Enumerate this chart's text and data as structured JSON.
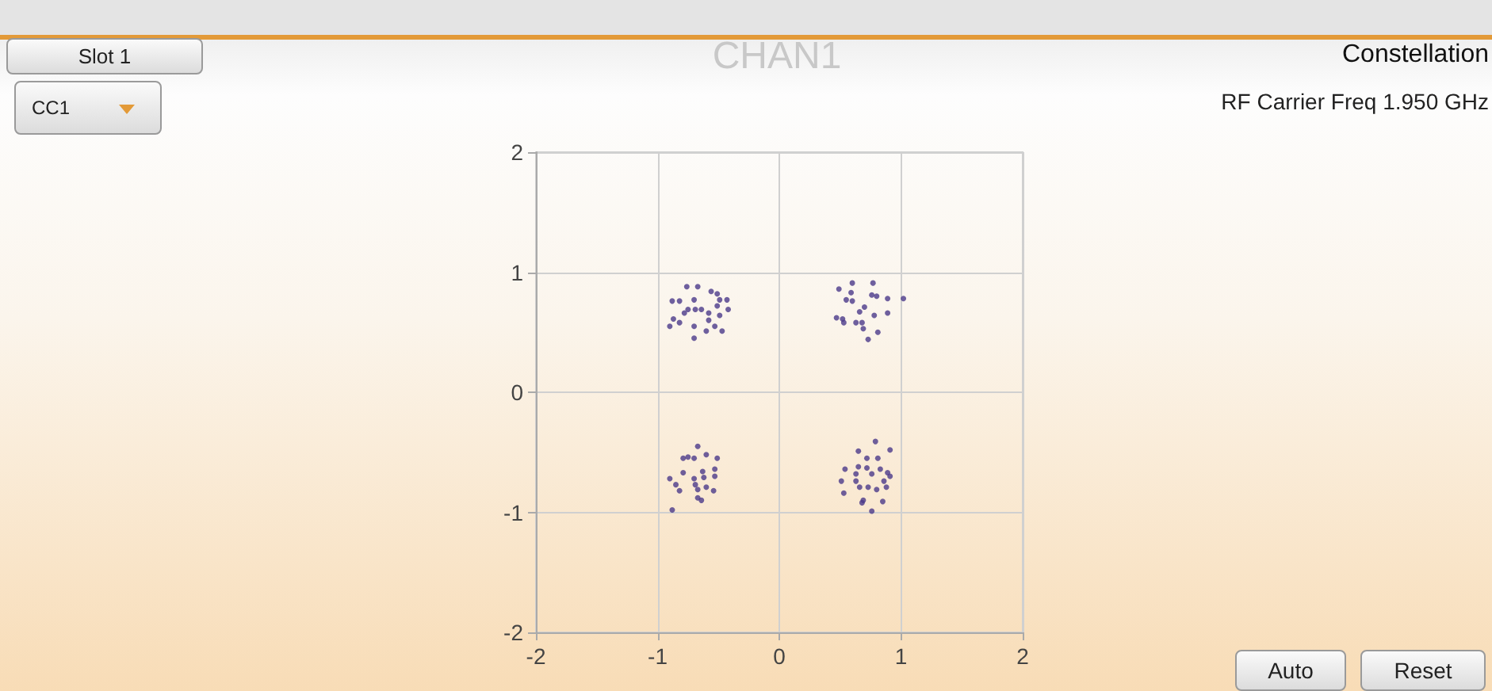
{
  "chart_data": {
    "type": "scatter",
    "title": "Constellation",
    "subtitle": "RF Carrier Freq 1.950 GHz",
    "annotations": [
      "CHAN1",
      "Slot 1",
      "CC1",
      "Auto",
      "Reset"
    ],
    "xlim": [
      -2,
      2
    ],
    "xticks": [
      -2,
      -1,
      0,
      1,
      2
    ],
    "ylim": [
      -2,
      2
    ],
    "yticks": [
      -2,
      -1,
      0,
      1,
      2
    ],
    "grid": true,
    "marker": "circle",
    "series": [
      {
        "color": "#4b3a8a",
        "x": [
          -0.76,
          -0.67,
          -0.56,
          -0.51,
          -0.88,
          -0.82,
          -0.7,
          -0.49,
          -0.43,
          -0.75,
          -0.69,
          -0.64,
          -0.51,
          -0.42,
          -0.78,
          -0.58,
          -0.49,
          -0.87,
          -0.82,
          -0.9,
          -0.7,
          -0.58,
          -0.53,
          -0.6,
          -0.47,
          -0.7,
          0.49,
          0.6,
          0.77,
          0.59,
          0.55,
          0.6,
          0.76,
          0.8,
          0.89,
          1.02,
          0.7,
          0.66,
          0.78,
          0.89,
          0.47,
          0.52,
          0.53,
          0.63,
          0.68,
          0.69,
          0.81,
          0.73,
          -0.67,
          -0.75,
          -0.79,
          -0.7,
          -0.6,
          -0.51,
          -0.79,
          -0.63,
          -0.53,
          -0.9,
          -0.7,
          -0.62,
          -0.53,
          -0.85,
          -0.69,
          -0.6,
          -0.82,
          -0.67,
          -0.54,
          -0.67,
          -0.64,
          -0.88,
          0.79,
          0.91,
          0.65,
          0.72,
          0.81,
          0.54,
          0.65,
          0.72,
          0.83,
          0.89,
          0.91,
          0.63,
          0.76,
          0.51,
          0.63,
          0.86,
          0.66,
          0.73,
          0.8,
          0.88,
          0.53,
          0.69,
          0.68,
          0.85,
          0.76
        ],
        "values": [
          0.88,
          0.88,
          0.84,
          0.82,
          0.76,
          0.76,
          0.77,
          0.77,
          0.77,
          0.69,
          0.69,
          0.69,
          0.72,
          0.69,
          0.66,
          0.66,
          0.64,
          0.61,
          0.58,
          0.55,
          0.55,
          0.6,
          0.55,
          0.51,
          0.51,
          0.45,
          0.86,
          0.91,
          0.91,
          0.83,
          0.77,
          0.76,
          0.81,
          0.8,
          0.78,
          0.78,
          0.71,
          0.67,
          0.64,
          0.66,
          0.62,
          0.61,
          0.58,
          0.58,
          0.58,
          0.53,
          0.5,
          0.44,
          -0.45,
          -0.54,
          -0.55,
          -0.55,
          -0.52,
          -0.55,
          -0.67,
          -0.66,
          -0.64,
          -0.72,
          -0.72,
          -0.71,
          -0.7,
          -0.77,
          -0.77,
          -0.79,
          -0.82,
          -0.81,
          -0.82,
          -0.88,
          -0.9,
          -0.98,
          -0.41,
          -0.48,
          -0.49,
          -0.55,
          -0.55,
          -0.64,
          -0.62,
          -0.63,
          -0.64,
          -0.67,
          -0.7,
          -0.68,
          -0.68,
          -0.74,
          -0.74,
          -0.74,
          -0.79,
          -0.79,
          -0.81,
          -0.79,
          -0.84,
          -0.9,
          -0.92,
          -0.91,
          -0.99
        ]
      }
    ]
  }
}
